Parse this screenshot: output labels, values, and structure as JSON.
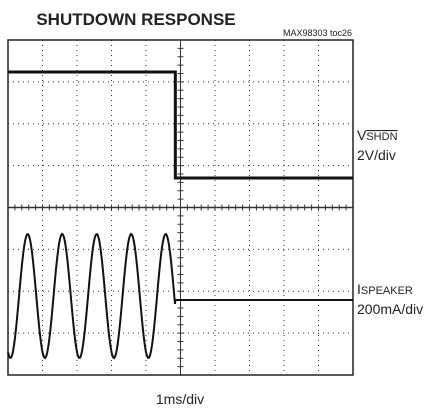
{
  "chart_data": {
    "type": "oscilloscope",
    "title": "SHUTDOWN RESPONSE",
    "note": "MAX98303 toc26",
    "channels": [
      {
        "symbol": "V",
        "subscript": "SHDN",
        "scale": "2V/div"
      },
      {
        "symbol": "I",
        "subscript": "SPEAKER",
        "scale": "200mA/div"
      }
    ],
    "x_label": "1ms/div"
  }
}
